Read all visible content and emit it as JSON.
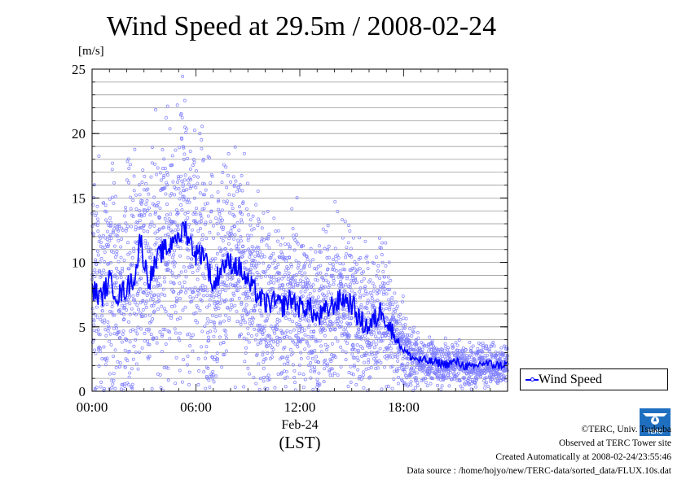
{
  "chart_data": {
    "type": "scatter",
    "title": "Wind Speed at 29.5m / 2008-02-24",
    "ylabel": "[m/s]",
    "ylim": [
      0,
      25
    ],
    "yticks": [
      "0",
      "5",
      "10",
      "15",
      "20",
      "25"
    ],
    "xlim": [
      0,
      24
    ],
    "xticks": [
      {
        "label": "00:00",
        "value": 0
      },
      {
        "label": "06:00",
        "value": 6
      },
      {
        "label": "12:00",
        "value": 12
      },
      {
        "label": "18:00",
        "value": 18
      }
    ],
    "xlabel_date": "Feb-24",
    "xlabel": "(LST)",
    "grid": "horizontal",
    "legend_position": "right",
    "series": [
      {
        "name": "Wind Speed",
        "color": "#0000ff",
        "marker_color": "#7f7fff",
        "x_unit": "hours",
        "mean_line": [
          [
            0.0,
            8.0
          ],
          [
            0.5,
            7.2
          ],
          [
            1.0,
            8.6
          ],
          [
            1.5,
            7.4
          ],
          [
            2.0,
            8.0
          ],
          [
            2.5,
            9.0
          ],
          [
            2.8,
            12.0
          ],
          [
            3.0,
            10.0
          ],
          [
            3.3,
            8.6
          ],
          [
            3.7,
            10.0
          ],
          [
            4.0,
            10.8
          ],
          [
            4.5,
            11.2
          ],
          [
            4.8,
            12.4
          ],
          [
            5.0,
            11.4
          ],
          [
            5.3,
            13.0
          ],
          [
            5.6,
            11.8
          ],
          [
            6.0,
            10.6
          ],
          [
            6.5,
            10.8
          ],
          [
            7.0,
            8.0
          ],
          [
            7.5,
            9.8
          ],
          [
            8.0,
            10.0
          ],
          [
            8.5,
            9.6
          ],
          [
            9.0,
            8.4
          ],
          [
            9.5,
            7.6
          ],
          [
            10.0,
            6.8
          ],
          [
            10.5,
            6.9
          ],
          [
            11.0,
            6.6
          ],
          [
            11.5,
            7.2
          ],
          [
            12.0,
            6.5
          ],
          [
            12.5,
            6.6
          ],
          [
            13.0,
            5.6
          ],
          [
            13.5,
            6.2
          ],
          [
            14.0,
            6.8
          ],
          [
            14.5,
            7.2
          ],
          [
            15.0,
            6.8
          ],
          [
            15.5,
            5.4
          ],
          [
            16.0,
            5.0
          ],
          [
            16.5,
            5.8
          ],
          [
            16.8,
            6.6
          ],
          [
            17.0,
            5.4
          ],
          [
            17.5,
            4.2
          ],
          [
            18.0,
            3.2
          ],
          [
            18.5,
            2.6
          ],
          [
            19.0,
            2.4
          ],
          [
            19.5,
            2.3
          ],
          [
            20.0,
            2.2
          ],
          [
            20.5,
            2.1
          ],
          [
            21.0,
            2.3
          ],
          [
            21.5,
            2.0
          ],
          [
            22.0,
            1.8
          ],
          [
            22.5,
            2.2
          ],
          [
            23.0,
            2.1
          ],
          [
            23.5,
            2.0
          ],
          [
            24.0,
            2.1
          ]
        ],
        "spread_band": [
          [
            0.0,
            4.0
          ],
          [
            3.0,
            4.5
          ],
          [
            5.0,
            5.0
          ],
          [
            8.0,
            3.8
          ],
          [
            12.0,
            3.0
          ],
          [
            15.0,
            3.0
          ],
          [
            17.0,
            2.3
          ],
          [
            18.0,
            1.5
          ],
          [
            19.0,
            0.8
          ],
          [
            24.0,
            0.8
          ]
        ]
      }
    ]
  },
  "legend": {
    "label": "Wind Speed"
  },
  "credits": [
    "©TERC, Univ. Tsukuba",
    "Observed at TERC Tower site",
    "Created Automatically at 2008-02-24/23:55:46",
    "Data source : /home/hojyo/new/TERC-data/sorted_data/FLUX.10s.dat"
  ],
  "logo": {
    "icon": "terc-logo",
    "text": "TERC"
  }
}
